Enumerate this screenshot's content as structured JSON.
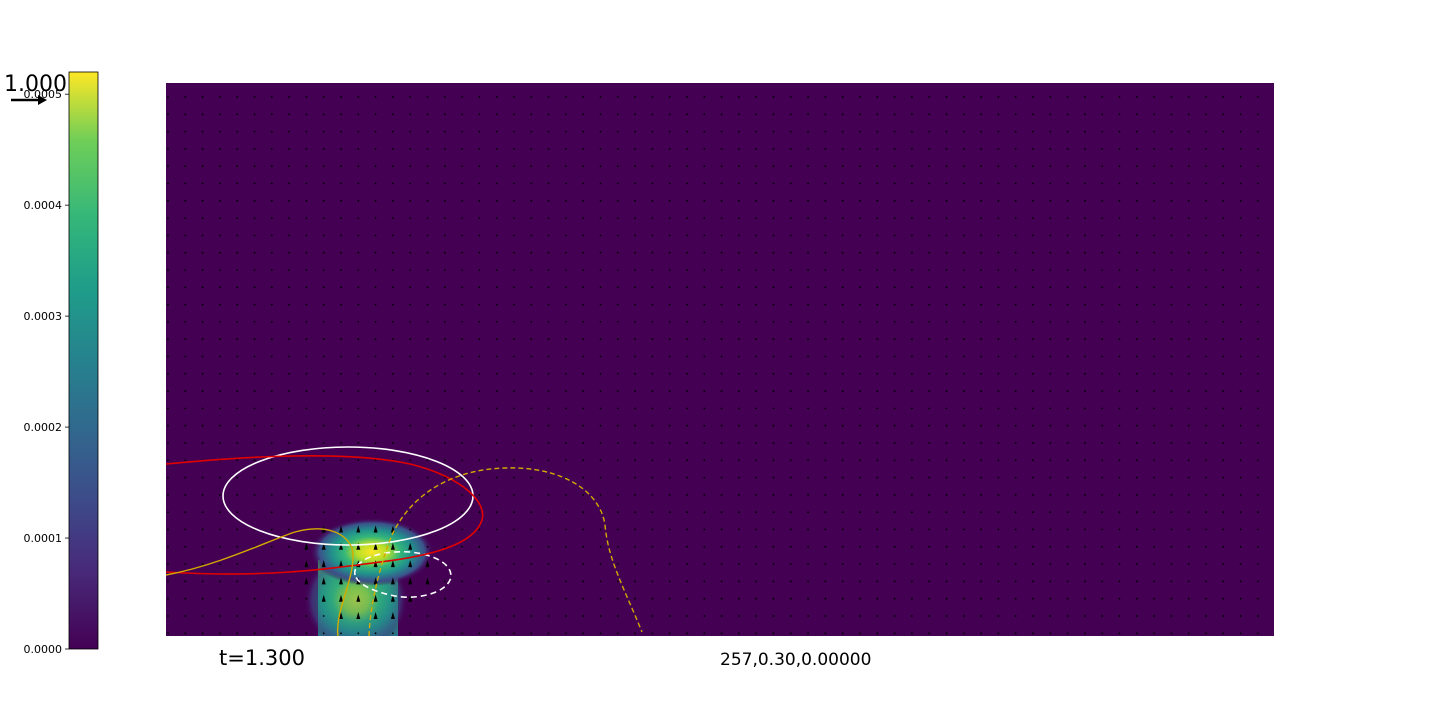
{
  "chart_data": {
    "type": "heatmap",
    "colormap": "viridis",
    "colorbar": {
      "ylim": [
        0,
        0.00052
      ],
      "ticks": [
        0,
        0.0001,
        0.0002,
        0.0003,
        0.0004,
        0.0005
      ],
      "tick_labels": [
        "0.0000",
        "0.0001",
        "0.0002",
        "0.0003",
        "0.0004",
        "0.0005"
      ]
    },
    "quiver_key_label": "1.000",
    "time_label": "t=1.300",
    "info_label": "257,0.30,0.00000",
    "field": {
      "background_value": 0,
      "peak_value": 0.00052
    },
    "contours": [
      {
        "color": "#ffffff",
        "style": "solid"
      },
      {
        "color": "#ffffff",
        "style": "dashed"
      },
      {
        "color": "#ff0000",
        "style": "solid"
      },
      {
        "color": "#ccaa00",
        "style": "solid"
      },
      {
        "color": "#ccaa00",
        "style": "dashed"
      }
    ],
    "grid": false
  }
}
